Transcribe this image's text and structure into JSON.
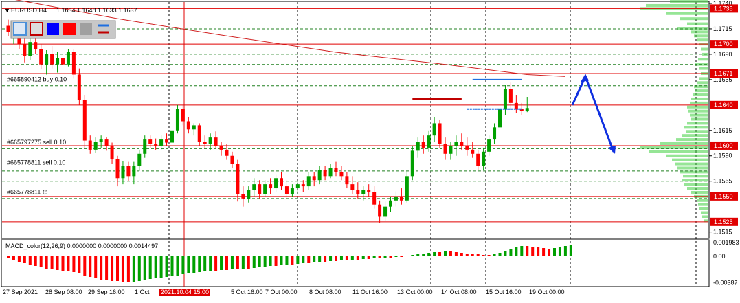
{
  "chart_data": {
    "type": "candlestick",
    "header": "EURUSD,H4  1.1634 1.1648 1.1633 1.1637",
    "symbol": "EURUSD,H4",
    "ohlc_header": "1.1634 1.1648 1.1633 1.1637",
    "price_axis": {
      "range": [
        1.151,
        1.174
      ],
      "ticks": [
        "1.1740",
        "1.1715",
        "1.1690",
        "1.1665",
        "1.1615",
        "1.1590",
        "1.1565",
        "1.1515"
      ],
      "tick_values": [
        1.174,
        1.1715,
        1.169,
        1.1665,
        1.1615,
        1.159,
        1.1565,
        1.1515
      ]
    },
    "level_labels": [
      {
        "text": "1.1735",
        "price": 1.1735
      },
      {
        "text": "1.1700",
        "price": 1.17
      },
      {
        "text": "1.1671",
        "price": 1.1671
      },
      {
        "text": "1.1640",
        "price": 1.164
      },
      {
        "text": "1.1600",
        "price": 1.16
      },
      {
        "text": "1.1550",
        "price": 1.155
      },
      {
        "text": "1.1525",
        "price": 1.1525
      }
    ],
    "red_levels": [
      1.1735,
      1.17,
      1.1671,
      1.164,
      1.16,
      1.155,
      1.1525
    ],
    "green_dashed_levels": [
      1.1715,
      1.169,
      1.168,
      1.1659,
      1.1597,
      1.1575,
      1.1565,
      1.1548
    ],
    "order_labels": [
      {
        "text": "#665890412 buy 0.10",
        "price": 1.1662
      },
      {
        "text": "#665797275 sell 0.10",
        "price": 1.16
      },
      {
        "text": "#665778811 sell 0.10",
        "price": 1.158
      },
      {
        "text": "#665778811 tp",
        "price": 1.1551
      }
    ],
    "time_axis": [
      "27 Sep 2021",
      "28 Sep 08:00",
      "29 Sep 16:00",
      "1 Oct",
      "5 Oct 16:00",
      "7 Oct 00:00",
      "8 Oct 08:00",
      "11 Oct 16:00",
      "13 Oct 00:00",
      "14 Oct 08:00",
      "15 Oct 16:00",
      "19 Oct 00:00"
    ],
    "time_highlight": "2021.10.04 15:00",
    "candles": [
      [
        1.1718,
        1.1724,
        1.1708,
        1.1712
      ],
      [
        1.1712,
        1.172,
        1.17,
        1.1715
      ],
      [
        1.1715,
        1.1722,
        1.1695,
        1.17
      ],
      [
        1.17,
        1.1712,
        1.1682,
        1.1688
      ],
      [
        1.1688,
        1.1706,
        1.1684,
        1.1702
      ],
      [
        1.1702,
        1.1708,
        1.169,
        1.1695
      ],
      [
        1.1695,
        1.17,
        1.1675,
        1.168
      ],
      [
        1.168,
        1.1694,
        1.167,
        1.169
      ],
      [
        1.169,
        1.1698,
        1.1676,
        1.168
      ],
      [
        1.168,
        1.1692,
        1.1672,
        1.1686
      ],
      [
        1.1686,
        1.169,
        1.1674,
        1.168
      ],
      [
        1.168,
        1.1695,
        1.1678,
        1.1692
      ],
      [
        1.1692,
        1.1695,
        1.1666,
        1.167
      ],
      [
        1.167,
        1.1676,
        1.164,
        1.1645
      ],
      [
        1.1645,
        1.165,
        1.1598,
        1.1605
      ],
      [
        1.1605,
        1.161,
        1.1592,
        1.1596
      ],
      [
        1.1596,
        1.1608,
        1.1593,
        1.1604
      ],
      [
        1.1604,
        1.161,
        1.1598,
        1.1606
      ],
      [
        1.1606,
        1.1608,
        1.1595,
        1.16
      ],
      [
        1.16,
        1.1603,
        1.1582,
        1.1587
      ],
      [
        1.1587,
        1.159,
        1.156,
        1.1568
      ],
      [
        1.1568,
        1.1585,
        1.1562,
        1.158
      ],
      [
        1.158,
        1.1584,
        1.1565,
        1.157
      ],
      [
        1.157,
        1.1584,
        1.1562,
        1.158
      ],
      [
        1.158,
        1.1596,
        1.1575,
        1.1592
      ],
      [
        1.1592,
        1.161,
        1.1588,
        1.1606
      ],
      [
        1.1606,
        1.161,
        1.1598,
        1.1602
      ],
      [
        1.1602,
        1.1607,
        1.1596,
        1.16
      ],
      [
        1.16,
        1.161,
        1.1596,
        1.1606
      ],
      [
        1.1606,
        1.1612,
        1.16,
        1.1603
      ],
      [
        1.1603,
        1.162,
        1.16,
        1.1615
      ],
      [
        1.1615,
        1.164,
        1.1612,
        1.1636
      ],
      [
        1.1636,
        1.164,
        1.162,
        1.1624
      ],
      [
        1.1624,
        1.1628,
        1.1612,
        1.1616
      ],
      [
        1.1616,
        1.1622,
        1.161,
        1.162
      ],
      [
        1.162,
        1.1622,
        1.16,
        1.1604
      ],
      [
        1.1604,
        1.161,
        1.1598,
        1.1602
      ],
      [
        1.1602,
        1.1612,
        1.1596,
        1.1608
      ],
      [
        1.1608,
        1.1614,
        1.1598,
        1.16
      ],
      [
        1.16,
        1.1604,
        1.159,
        1.1596
      ],
      [
        1.1596,
        1.1602,
        1.1586,
        1.159
      ],
      [
        1.159,
        1.1594,
        1.1578,
        1.1582
      ],
      [
        1.1582,
        1.1586,
        1.1545,
        1.1552
      ],
      [
        1.1552,
        1.156,
        1.154,
        1.1548
      ],
      [
        1.1548,
        1.156,
        1.1544,
        1.1556
      ],
      [
        1.1556,
        1.1568,
        1.155,
        1.1562
      ],
      [
        1.1562,
        1.1566,
        1.1548,
        1.1552
      ],
      [
        1.1552,
        1.1566,
        1.155,
        1.1562
      ],
      [
        1.1562,
        1.1568,
        1.1552,
        1.1558
      ],
      [
        1.1558,
        1.1572,
        1.1554,
        1.1568
      ],
      [
        1.1568,
        1.1574,
        1.1556,
        1.156
      ],
      [
        1.156,
        1.1566,
        1.1548,
        1.1552
      ],
      [
        1.1552,
        1.1562,
        1.155,
        1.1558
      ],
      [
        1.1558,
        1.1566,
        1.1552,
        1.1562
      ],
      [
        1.1562,
        1.1566,
        1.1554,
        1.156
      ],
      [
        1.156,
        1.1574,
        1.1556,
        1.157
      ],
      [
        1.157,
        1.1574,
        1.156,
        1.1566
      ],
      [
        1.1566,
        1.158,
        1.1562,
        1.1576
      ],
      [
        1.1576,
        1.158,
        1.1566,
        1.157
      ],
      [
        1.157,
        1.1582,
        1.1568,
        1.1578
      ],
      [
        1.1578,
        1.1584,
        1.157,
        1.1574
      ],
      [
        1.1574,
        1.158,
        1.1566,
        1.157
      ],
      [
        1.157,
        1.1574,
        1.1558,
        1.1562
      ],
      [
        1.1562,
        1.157,
        1.1552,
        1.1556
      ],
      [
        1.1556,
        1.1564,
        1.1548,
        1.1552
      ],
      [
        1.1552,
        1.156,
        1.1546,
        1.1556
      ],
      [
        1.1556,
        1.1562,
        1.155,
        1.1554
      ],
      [
        1.1554,
        1.156,
        1.1538,
        1.1542
      ],
      [
        1.1542,
        1.1546,
        1.1524,
        1.153
      ],
      [
        1.153,
        1.1545,
        1.1526,
        1.154
      ],
      [
        1.154,
        1.155,
        1.1535,
        1.1546
      ],
      [
        1.1546,
        1.1555,
        1.154,
        1.155
      ],
      [
        1.155,
        1.1558,
        1.1542,
        1.1546
      ],
      [
        1.1546,
        1.1575,
        1.1544,
        1.157
      ],
      [
        1.157,
        1.16,
        1.1566,
        1.1595
      ],
      [
        1.1595,
        1.1608,
        1.1588,
        1.1604
      ],
      [
        1.1604,
        1.161,
        1.1592,
        1.1598
      ],
      [
        1.1598,
        1.1615,
        1.1594,
        1.161
      ],
      [
        1.161,
        1.1628,
        1.1604,
        1.1622
      ],
      [
        1.1622,
        1.1625,
        1.1598,
        1.1602
      ],
      [
        1.1602,
        1.1608,
        1.1586,
        1.1592
      ],
      [
        1.1592,
        1.1604,
        1.1586,
        1.16
      ],
      [
        1.16,
        1.161,
        1.159,
        1.1604
      ],
      [
        1.1604,
        1.1612,
        1.1596,
        1.16
      ],
      [
        1.16,
        1.1608,
        1.159,
        1.1596
      ],
      [
        1.1596,
        1.1604,
        1.1588,
        1.1592
      ],
      [
        1.1592,
        1.1596,
        1.1576,
        1.158
      ],
      [
        1.158,
        1.1598,
        1.1576,
        1.1594
      ],
      [
        1.1594,
        1.161,
        1.159,
        1.1606
      ],
      [
        1.1606,
        1.1622,
        1.1602,
        1.1618
      ],
      [
        1.1618,
        1.164,
        1.1614,
        1.1636
      ],
      [
        1.1636,
        1.166,
        1.163,
        1.1656
      ],
      [
        1.1656,
        1.1662,
        1.1636,
        1.1642
      ],
      [
        1.1642,
        1.165,
        1.1632,
        1.1636
      ],
      [
        1.1636,
        1.1642,
        1.163,
        1.1634
      ],
      [
        1.1634,
        1.1648,
        1.1633,
        1.1637
      ]
    ],
    "ma_red": [
      [
        0,
        1.1745
      ],
      [
        20,
        1.1725
      ],
      [
        40,
        1.1708
      ],
      [
        60,
        1.1692
      ],
      [
        80,
        1.168
      ],
      [
        95,
        1.167
      ],
      [
        102,
        1.1668
      ]
    ],
    "arrow_points": [
      1.164,
      1.1668,
      1.1594
    ],
    "segments": [
      {
        "color": "#c00000",
        "price": 1.1646,
        "x0": 74,
        "x1": 83
      },
      {
        "color": "#1f6fe0",
        "price": 1.1665,
        "x0": 85,
        "x1": 94
      },
      {
        "color": "#1f6fe0",
        "price": 1.1636,
        "x0": 84,
        "x1": 94,
        "dashed": true
      }
    ],
    "volume_profile": [
      [
        1.1742,
        55
      ],
      [
        1.1738,
        90
      ],
      [
        1.1735,
        98
      ],
      [
        1.173,
        60
      ],
      [
        1.1725,
        40
      ],
      [
        1.172,
        30
      ],
      [
        1.1715,
        45
      ],
      [
        1.1712,
        25
      ],
      [
        1.1708,
        20
      ],
      [
        1.1704,
        15
      ],
      [
        1.17,
        12
      ],
      [
        1.1695,
        10
      ],
      [
        1.169,
        9
      ],
      [
        1.1685,
        14
      ],
      [
        1.168,
        18
      ],
      [
        1.1676,
        12
      ],
      [
        1.1671,
        10
      ],
      [
        1.1666,
        12
      ],
      [
        1.1662,
        16
      ],
      [
        1.1658,
        20
      ],
      [
        1.1654,
        18
      ],
      [
        1.165,
        22
      ],
      [
        1.1646,
        24
      ],
      [
        1.1642,
        26
      ],
      [
        1.1638,
        30
      ],
      [
        1.1634,
        28
      ],
      [
        1.163,
        26
      ],
      [
        1.1626,
        24
      ],
      [
        1.1622,
        30
      ],
      [
        1.1618,
        34
      ],
      [
        1.1614,
        32
      ],
      [
        1.161,
        38
      ],
      [
        1.1606,
        46
      ],
      [
        1.1602,
        70
      ],
      [
        1.1598,
        98
      ],
      [
        1.1594,
        86
      ],
      [
        1.159,
        60
      ],
      [
        1.1586,
        52
      ],
      [
        1.1582,
        48
      ],
      [
        1.1578,
        44
      ],
      [
        1.1574,
        40
      ],
      [
        1.157,
        36
      ],
      [
        1.1566,
        38
      ],
      [
        1.1562,
        34
      ],
      [
        1.1558,
        30
      ],
      [
        1.1554,
        24
      ],
      [
        1.155,
        20
      ],
      [
        1.1546,
        16
      ],
      [
        1.1542,
        14
      ],
      [
        1.1538,
        12
      ],
      [
        1.1534,
        10
      ],
      [
        1.153,
        8
      ],
      [
        1.1526,
        6
      ]
    ],
    "macd": {
      "label": "MACD_color(12,26,9) 0.0000000 0.0000000 0.0014497",
      "ticks": [
        "0.001983",
        "0.00",
        "-0.00387"
      ],
      "tick_values": [
        0.001983,
        0.0,
        -0.00387
      ],
      "range": [
        -0.0042,
        0.0022
      ],
      "histogram": [
        -0.0003,
        -0.0005,
        -0.0008,
        -0.001,
        -0.0012,
        -0.0014,
        -0.0016,
        -0.0018,
        -0.0019,
        -0.002,
        -0.0021,
        -0.0022,
        -0.0023,
        -0.0025,
        -0.0028,
        -0.003,
        -0.0032,
        -0.0034,
        -0.0035,
        -0.0036,
        -0.0036,
        -0.0037,
        -0.0038,
        -0.0037,
        -0.0036,
        -0.0035,
        -0.0033,
        -0.0032,
        -0.0031,
        -0.003,
        -0.0029,
        -0.0028,
        -0.0026,
        -0.0025,
        -0.0024,
        -0.0023,
        -0.0022,
        -0.0021,
        -0.0021,
        -0.002,
        -0.002,
        -0.0019,
        -0.0019,
        -0.0018,
        -0.0018,
        -0.0017,
        -0.0016,
        -0.0015,
        -0.0014,
        -0.0014,
        -0.0013,
        -0.0012,
        -0.0012,
        -0.0011,
        -0.001,
        -0.001,
        -0.0009,
        -0.0008,
        -0.0008,
        -0.0007,
        -0.0007,
        -0.0006,
        -0.0006,
        -0.0005,
        -0.0005,
        -0.0004,
        -0.0004,
        -0.0003,
        -0.0003,
        -0.0002,
        -0.0002,
        -0.0001,
        -0.0001,
        0.0001,
        0.0002,
        0.0003,
        0.0004,
        0.0005,
        0.0006,
        0.0006,
        0.0007,
        0.0007,
        0.0006,
        0.0005,
        0.0004,
        0.0003,
        0.0003,
        0.0002,
        0.0002,
        0.0003,
        0.0005,
        0.0008,
        0.0011,
        0.0014,
        0.0015,
        0.0015,
        0.0014,
        0.0013,
        0.0012,
        0.0011,
        0.0012,
        0.0014,
        0.0015,
        0.0016
      ]
    }
  },
  "colors": {
    "bull": "#00a000",
    "bear": "#ff0000",
    "level_red": "#e00000",
    "green_dash": "#208020",
    "ma": "#d02020",
    "arrow": "#1030e0",
    "volume": "#40d040",
    "label_bg": "#e00000"
  },
  "toolbar": {
    "swatches": [
      "#4a90d9",
      "#c00000",
      "#0000ff",
      "#ff0000",
      "#a0a0a0",
      "#1f6fe0"
    ]
  }
}
